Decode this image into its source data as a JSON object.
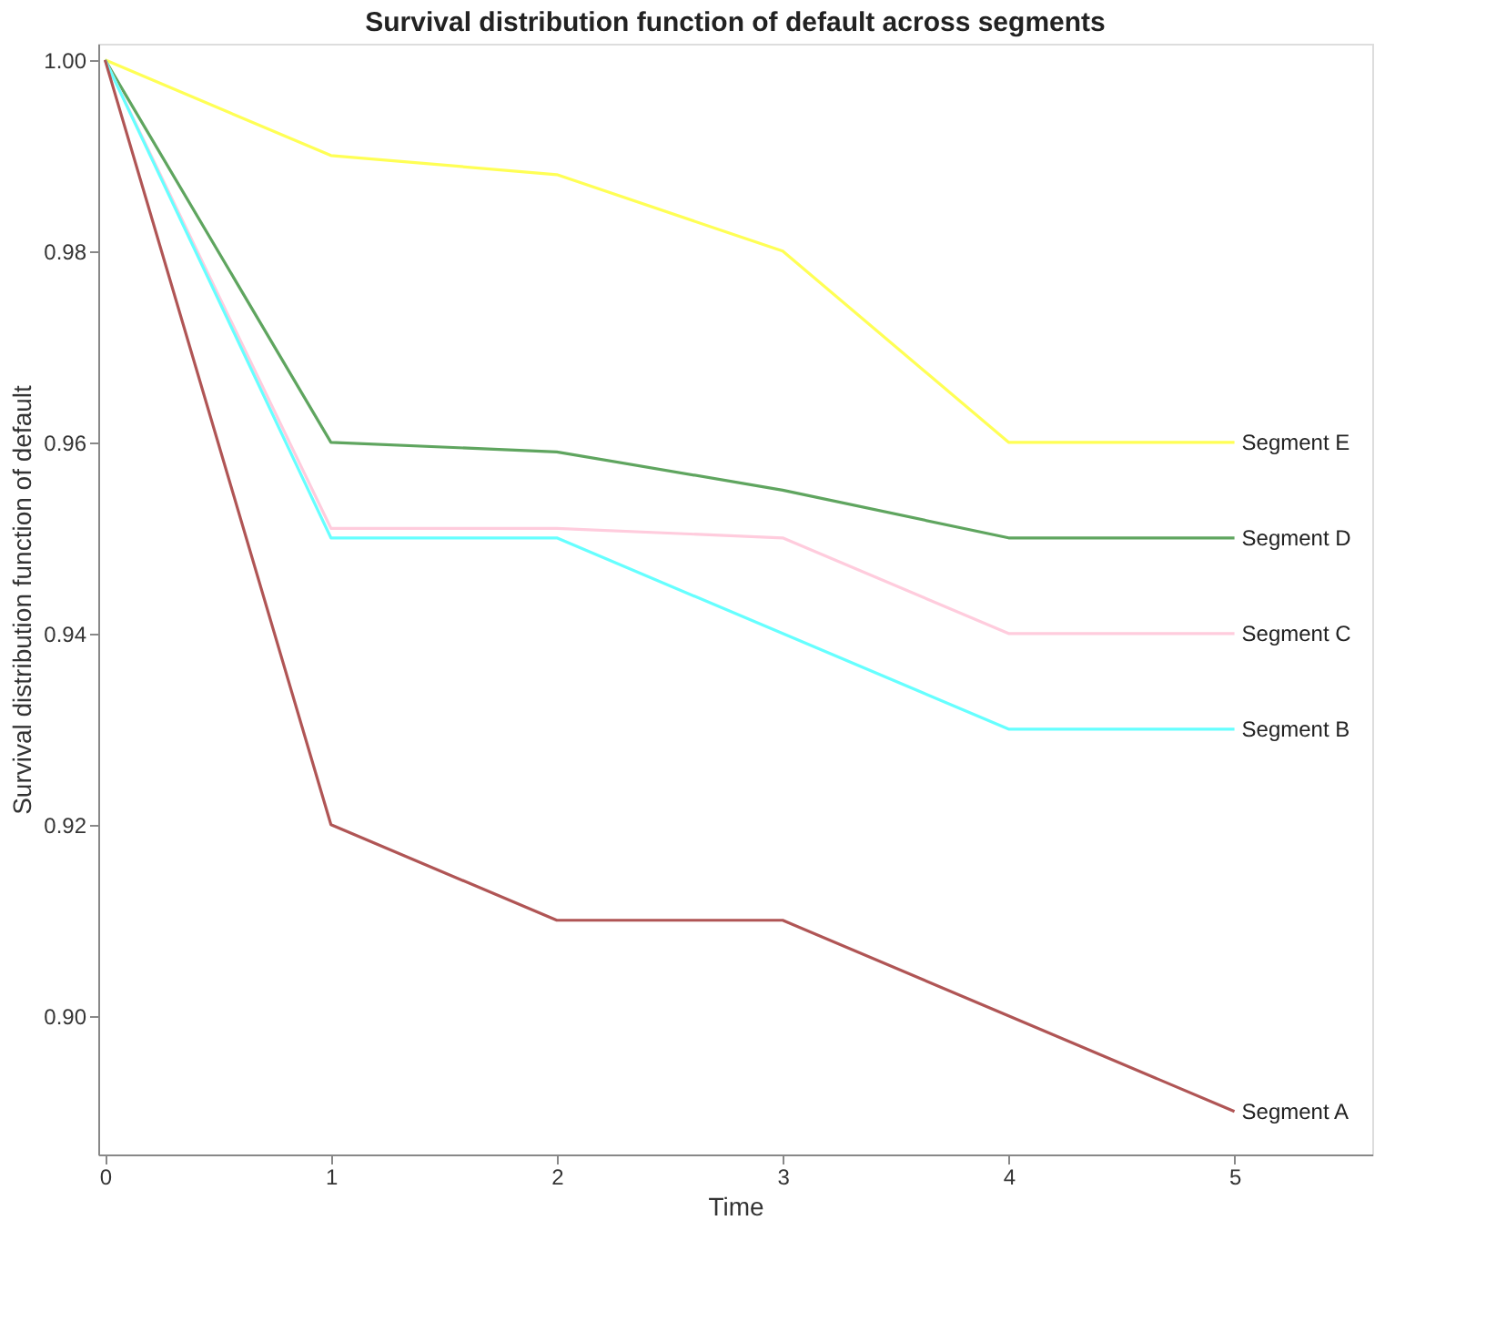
{
  "chart_data": {
    "type": "line",
    "title": "Survival distribution function of default across segments",
    "xlabel": "Time",
    "ylabel": "Survival distribution function of default",
    "x": [
      0,
      1,
      2,
      3,
      4,
      5
    ],
    "series": [
      {
        "name": "Segment E",
        "color": "#ffff55",
        "values": [
          1.0,
          0.99,
          0.988,
          0.98,
          0.96,
          0.96
        ]
      },
      {
        "name": "Segment D",
        "color": "#5fa55f",
        "values": [
          1.0,
          0.96,
          0.959,
          0.955,
          0.95,
          0.95
        ]
      },
      {
        "name": "Segment C",
        "color": "#ffccdd",
        "values": [
          1.0,
          0.951,
          0.951,
          0.95,
          0.94,
          0.94
        ]
      },
      {
        "name": "Segment B",
        "color": "#66ffff",
        "values": [
          1.0,
          0.95,
          0.95,
          0.94,
          0.93,
          0.93
        ]
      },
      {
        "name": "Segment A",
        "color": "#b05555",
        "values": [
          1.0,
          0.92,
          0.91,
          0.91,
          0.9,
          0.89
        ]
      }
    ],
    "xlim": [
      -0.03,
      5.61
    ],
    "xticks": [
      0,
      1,
      2,
      3,
      4,
      5
    ],
    "ylim": [
      0.8855,
      1.0017
    ],
    "yticks": [
      {
        "value": 0.9,
        "label": "0.90"
      },
      {
        "value": 0.92,
        "label": "0.92"
      },
      {
        "value": 0.94,
        "label": "0.94"
      },
      {
        "value": 0.96,
        "label": "0.96"
      },
      {
        "value": 0.98,
        "label": "0.98"
      },
      {
        "value": 1.0,
        "label": "1.00"
      }
    ],
    "grid": false,
    "legend": false,
    "marker": "none",
    "line_style": "solid"
  }
}
